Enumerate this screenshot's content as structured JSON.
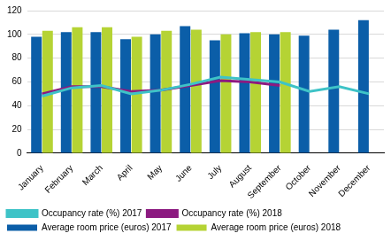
{
  "chart_data": {
    "type": "bar",
    "categories": [
      "January",
      "February",
      "March",
      "April",
      "May",
      "June",
      "July",
      "August",
      "September",
      "October",
      "November",
      "December"
    ],
    "series": [
      {
        "name": "Average room price (euros) 2017",
        "type": "bar",
        "color": "#0b5ea8",
        "values": [
          98,
          102,
          102,
          96,
          100,
          107,
          95,
          101,
          100,
          99,
          104,
          112
        ]
      },
      {
        "name": "Average room price (euros) 2018",
        "type": "bar",
        "color": "#b5d334",
        "values": [
          103,
          106,
          106,
          98,
          103,
          104,
          100,
          102,
          102,
          null,
          null,
          null
        ]
      },
      {
        "name": "Occupancy rate (%) 2017",
        "type": "line",
        "color": "#3ec3c7",
        "values": [
          48,
          55,
          57,
          50,
          53,
          58,
          64,
          62,
          60,
          52,
          56,
          50
        ]
      },
      {
        "name": "Occupancy rate (%) 2018",
        "type": "line",
        "color": "#8c1a80",
        "values": [
          50,
          56,
          56,
          52,
          53,
          57,
          61,
          60,
          57,
          null,
          null,
          null
        ]
      }
    ],
    "ylim": [
      0,
      120
    ],
    "yticks": [
      0,
      20,
      40,
      60,
      80,
      100,
      120
    ],
    "grid": true,
    "legend": "bottom"
  }
}
